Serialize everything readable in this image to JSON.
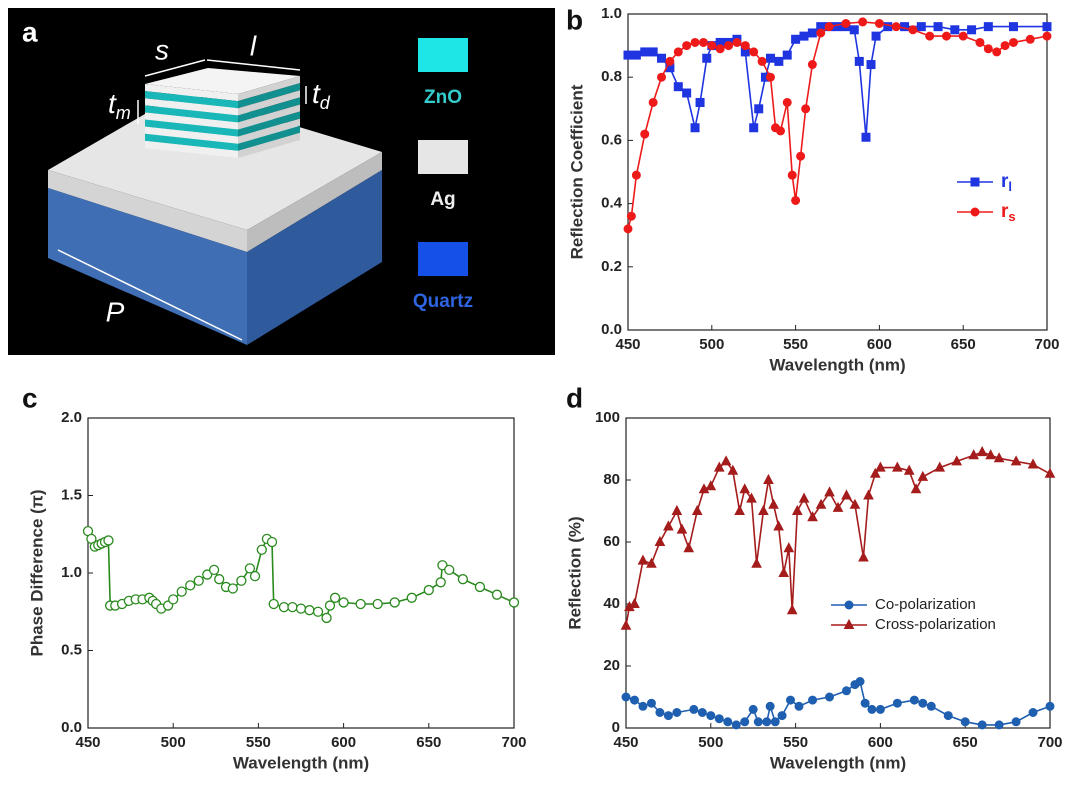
{
  "panel_a": {
    "label": "a",
    "dimensions": {
      "s": "s",
      "l": "l",
      "t_m": {
        "main": "t",
        "sub": "m"
      },
      "t_d": {
        "main": "t",
        "sub": "d"
      },
      "P": "P"
    },
    "materials": [
      {
        "text": "ZnO",
        "color": "#1fe6e6",
        "text_color": "#35cccc"
      },
      {
        "text": "Ag",
        "color": "#e6e6e6",
        "text_color": "#eeeeee"
      },
      {
        "text": "Quartz",
        "color": "#1551e8",
        "text_color": "#2e64e0"
      }
    ]
  },
  "chart_data": [
    {
      "type": "line",
      "label": "b",
      "xlabel": "Wavelength (nm)",
      "ylabel": "Reflection Coefficient",
      "xlim": [
        450,
        700
      ],
      "xticks": [
        450,
        500,
        550,
        600,
        650,
        700
      ],
      "ylim": [
        0,
        1
      ],
      "yticks": [
        {
          "value": 0,
          "label": "0.0"
        },
        {
          "value": 0.2,
          "label": "0.2"
        },
        {
          "value": 0.4,
          "label": "0.4"
        },
        {
          "value": 0.6,
          "label": "0.6"
        },
        {
          "value": 0.8,
          "label": "0.8"
        },
        {
          "value": 1,
          "label": "1.0"
        }
      ],
      "legend": "right",
      "series": [
        {
          "name": "r",
          "name_sub": "l",
          "color": "#1f35e0",
          "marker": "square",
          "x": [
            450,
            455,
            460,
            465,
            470,
            475,
            480,
            485,
            490,
            493,
            497,
            500,
            505,
            510,
            515,
            520,
            525,
            528,
            532,
            535,
            540,
            545,
            550,
            555,
            560,
            565,
            570,
            575,
            580,
            585,
            588,
            592,
            595,
            598,
            605,
            615,
            625,
            635,
            645,
            655,
            665,
            680,
            700
          ],
          "values": [
            0.87,
            0.87,
            0.88,
            0.88,
            0.86,
            0.83,
            0.77,
            0.75,
            0.64,
            0.72,
            0.86,
            0.9,
            0.91,
            0.91,
            0.92,
            0.88,
            0.64,
            0.7,
            0.8,
            0.86,
            0.85,
            0.87,
            0.92,
            0.93,
            0.94,
            0.96,
            0.96,
            0.96,
            0.96,
            0.95,
            0.85,
            0.61,
            0.84,
            0.93,
            0.96,
            0.96,
            0.96,
            0.96,
            0.95,
            0.95,
            0.96,
            0.96,
            0.96
          ]
        },
        {
          "name": "r",
          "name_sub": "s",
          "color": "#ee1a1a",
          "marker": "circle",
          "x": [
            450,
            452,
            455,
            460,
            465,
            470,
            475,
            480,
            485,
            490,
            495,
            500,
            505,
            510,
            515,
            520,
            525,
            530,
            535,
            538,
            541,
            545,
            548,
            550,
            553,
            556,
            560,
            565,
            570,
            580,
            590,
            600,
            610,
            620,
            630,
            640,
            650,
            660,
            665,
            670,
            675,
            680,
            690,
            700
          ],
          "values": [
            0.32,
            0.36,
            0.49,
            0.62,
            0.72,
            0.8,
            0.85,
            0.88,
            0.9,
            0.91,
            0.91,
            0.9,
            0.89,
            0.9,
            0.91,
            0.9,
            0.88,
            0.85,
            0.8,
            0.64,
            0.63,
            0.72,
            0.49,
            0.41,
            0.55,
            0.7,
            0.84,
            0.94,
            0.96,
            0.97,
            0.975,
            0.97,
            0.96,
            0.95,
            0.93,
            0.93,
            0.93,
            0.91,
            0.89,
            0.88,
            0.9,
            0.91,
            0.92,
            0.93
          ]
        }
      ]
    },
    {
      "type": "line",
      "label": "c",
      "xlabel": "Wavelength (nm)",
      "ylabel": "Phase Difference (π)",
      "xlim": [
        450,
        700
      ],
      "xticks": [
        450,
        500,
        550,
        600,
        650,
        700
      ],
      "ylim": [
        0,
        2
      ],
      "yticks": [
        {
          "value": 0,
          "label": "0.0"
        },
        {
          "value": 0.5,
          "label": "0.5"
        },
        {
          "value": 1,
          "label": "1.0"
        },
        {
          "value": 1.5,
          "label": "1.5"
        },
        {
          "value": 2,
          "label": "2.0"
        }
      ],
      "series": [
        {
          "color": "#2a8a1e",
          "marker": "circle",
          "open": true,
          "x": [
            450,
            452,
            454,
            456,
            458,
            460,
            462,
            463,
            466,
            470,
            474,
            478,
            482,
            486,
            488,
            490,
            493,
            497,
            500,
            505,
            510,
            515,
            520,
            524,
            527,
            531,
            535,
            540,
            545,
            548,
            552,
            555,
            558,
            559,
            565,
            570,
            575,
            580,
            585,
            590,
            592,
            595,
            600,
            610,
            620,
            630,
            640,
            650,
            657,
            658,
            662,
            670,
            680,
            690,
            700
          ],
          "values": [
            1.27,
            1.22,
            1.17,
            1.18,
            1.19,
            1.2,
            1.21,
            0.79,
            0.79,
            0.8,
            0.82,
            0.83,
            0.83,
            0.84,
            0.82,
            0.8,
            0.77,
            0.79,
            0.83,
            0.88,
            0.92,
            0.95,
            0.99,
            1.02,
            0.96,
            0.91,
            0.9,
            0.95,
            1.03,
            0.98,
            1.15,
            1.22,
            1.2,
            0.8,
            0.78,
            0.78,
            0.77,
            0.76,
            0.75,
            0.71,
            0.79,
            0.84,
            0.81,
            0.8,
            0.8,
            0.81,
            0.84,
            0.89,
            0.94,
            1.05,
            1.02,
            0.96,
            0.91,
            0.86,
            0.81
          ]
        }
      ]
    },
    {
      "type": "line",
      "label": "d",
      "xlabel": "Wavelength (nm)",
      "ylabel": "Reflection (%)",
      "xlim": [
        450,
        700
      ],
      "xticks": [
        450,
        500,
        550,
        600,
        650,
        700
      ],
      "ylim": [
        0,
        100
      ],
      "yticks": [
        0,
        20,
        40,
        60,
        80,
        100
      ],
      "legend": "center",
      "series": [
        {
          "name": "Co-polarization",
          "color": "#1f5fb0",
          "marker": "circle",
          "x": [
            450,
            455,
            460,
            465,
            470,
            475,
            480,
            490,
            495,
            500,
            505,
            510,
            515,
            520,
            525,
            528,
            533,
            535,
            538,
            542,
            547,
            552,
            560,
            570,
            580,
            585,
            588,
            591,
            595,
            600,
            610,
            620,
            625,
            630,
            640,
            650,
            660,
            670,
            680,
            690,
            700
          ],
          "values": [
            10,
            9,
            7,
            8,
            5,
            4,
            5,
            6,
            5,
            4,
            3,
            2,
            1,
            2,
            6,
            2,
            2,
            7,
            2,
            4,
            9,
            7,
            9,
            10,
            12,
            14,
            15,
            8,
            6,
            6,
            8,
            9,
            8,
            7,
            4,
            2,
            1,
            1,
            2,
            5,
            7
          ]
        },
        {
          "name": "Cross-polarization",
          "color": "#a51c1c",
          "marker": "triangle",
          "x": [
            450,
            452,
            455,
            460,
            465,
            470,
            475,
            480,
            483,
            487,
            492,
            496,
            500,
            505,
            509,
            513,
            517,
            520,
            524,
            527,
            531,
            534,
            537,
            540,
            543,
            546,
            548,
            551,
            555,
            560,
            565,
            570,
            575,
            580,
            585,
            590,
            593,
            597,
            600,
            610,
            617,
            621,
            625,
            635,
            645,
            655,
            660,
            665,
            670,
            680,
            690,
            700
          ],
          "values": [
            33,
            39,
            40,
            54,
            53,
            60,
            65,
            70,
            64,
            58,
            70,
            77,
            78,
            84,
            86,
            83,
            70,
            77,
            74,
            53,
            70,
            80,
            72,
            65,
            50,
            58,
            38,
            70,
            74,
            68,
            72,
            76,
            71,
            75,
            72,
            55,
            75,
            82,
            84,
            84,
            83,
            77,
            81,
            84,
            86,
            88,
            89,
            88,
            87,
            86,
            85,
            82
          ]
        }
      ]
    }
  ]
}
